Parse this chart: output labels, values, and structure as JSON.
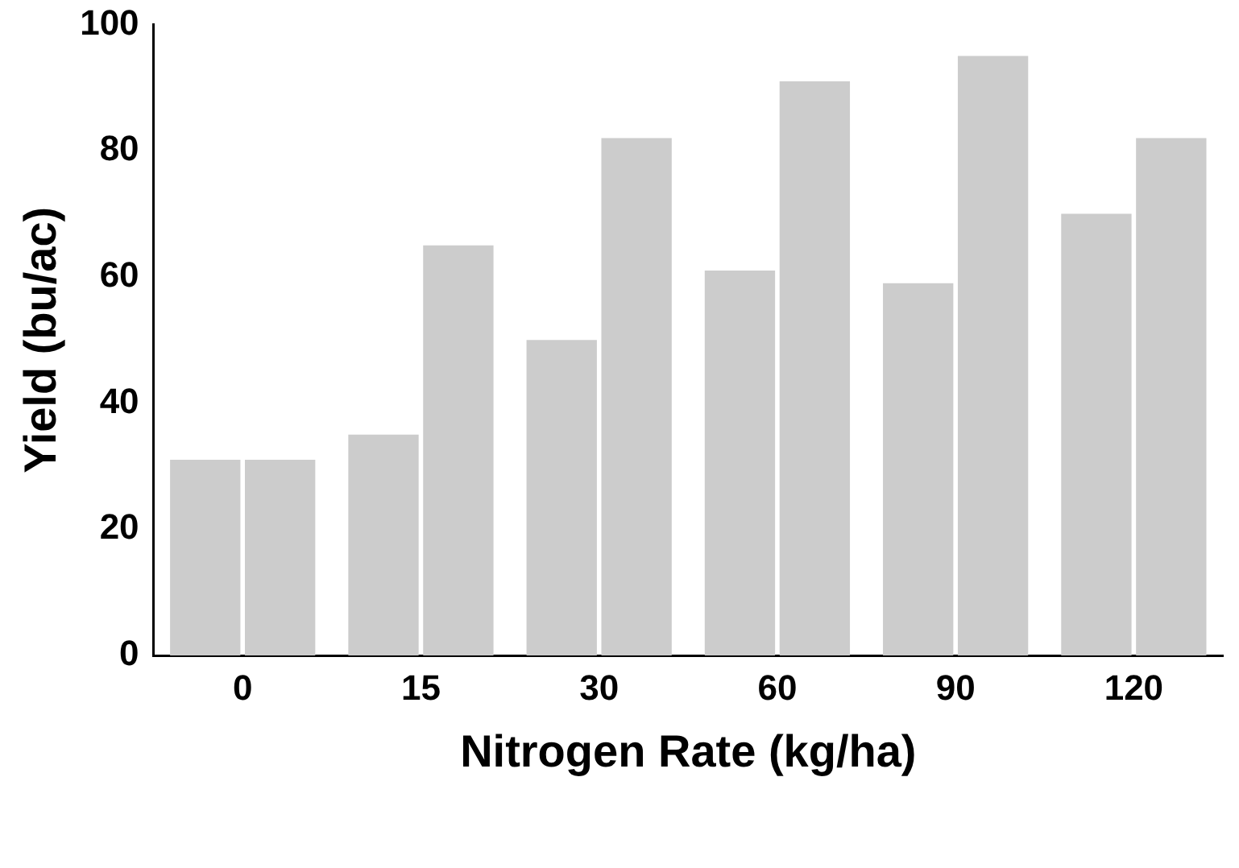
{
  "chart_data": {
    "type": "bar",
    "xlabel": "Nitrogen Rate (kg/ha)",
    "ylabel": "Yield (bu/ac)",
    "categories": [
      "0",
      "15",
      "30",
      "60",
      "90",
      "120"
    ],
    "series": [
      {
        "color": "#cccccc",
        "values": [
          31,
          35,
          50,
          61,
          59,
          70
        ]
      },
      {
        "color": "#cccccc",
        "values": [
          31,
          65,
          82,
          91,
          95,
          82
        ]
      }
    ],
    "ylim": [
      0,
      100
    ],
    "yticks": [
      0,
      20,
      40,
      60,
      80,
      100
    ],
    "grid": false,
    "legend": false
  }
}
